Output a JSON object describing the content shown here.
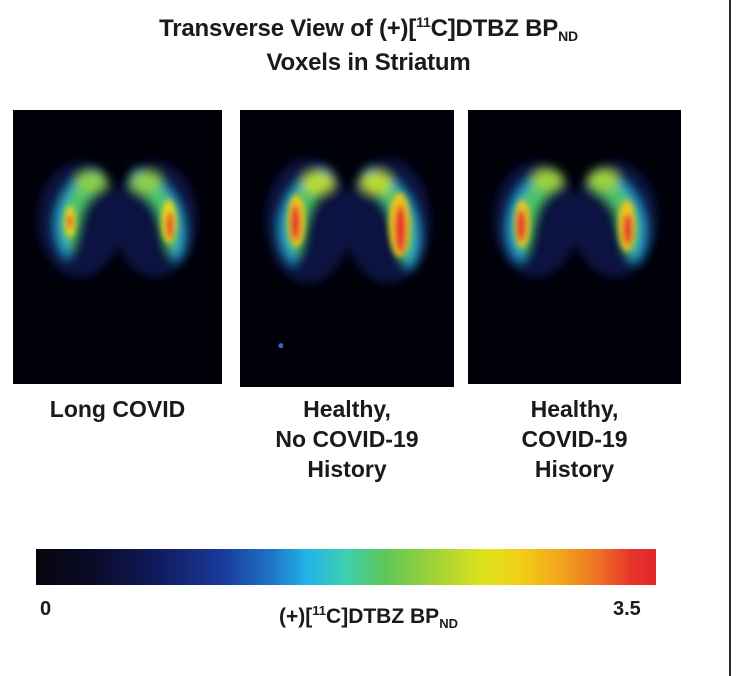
{
  "title": {
    "line1_pre": "Transverse View of (+)[",
    "line1_sup": "11",
    "line1_mid": "C]DTBZ BP",
    "line1_sub": "ND",
    "line2": "Voxels in Striatum"
  },
  "panels": [
    {
      "caption_lines": [
        "Long COVID"
      ]
    },
    {
      "caption_lines": [
        "Healthy,",
        "No COVID-19",
        "History"
      ]
    },
    {
      "caption_lines": [
        "Healthy,",
        "COVID-19",
        "History"
      ]
    }
  ],
  "colorbar": {
    "min": "0",
    "max": "3.5",
    "label_pre": "(+)[",
    "label_sup": "11",
    "label_mid": "C]DTBZ BP",
    "label_sub": "ND",
    "colors": [
      "#05050d",
      "#101c60",
      "#1e74c8",
      "#22b6e6",
      "#5cc65a",
      "#dde21c",
      "#f1a21c",
      "#e32628"
    ]
  }
}
